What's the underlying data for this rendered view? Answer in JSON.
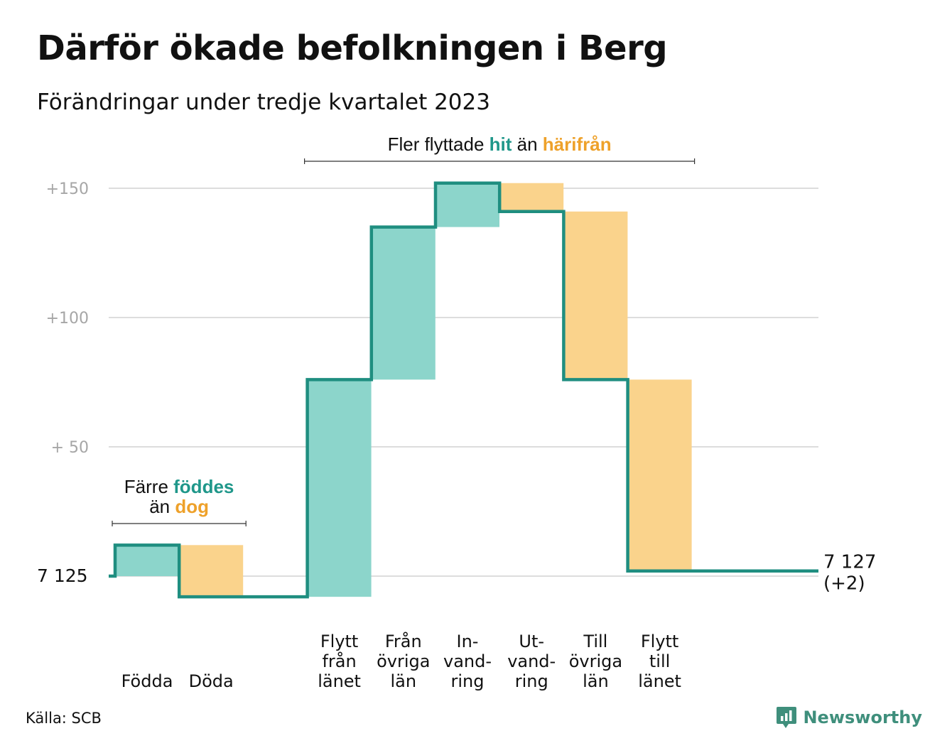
{
  "title": "Därför ökade befolkningen i Berg",
  "subtitle": "Förändringar under tredje kvartalet 2023",
  "source": "Källa: SCB",
  "brand": {
    "name": "Newsworthy",
    "icon": "newsworthy-logo-icon"
  },
  "colors": {
    "increase": "#8cd5cb",
    "decrease": "#fad38c",
    "line": "#1f8e80",
    "highlight_green": "#1f978a",
    "highlight_orange": "#eea12a",
    "grid": "#dddddd",
    "tick_text": "#a6a6a6"
  },
  "chart_data": {
    "type": "bar",
    "subtype": "waterfall",
    "title": "Därför ökade befolkningen i Berg",
    "subtitle": "Förändringar under tredje kvartalet 2023",
    "start_value": 7125,
    "start_label": "7  125",
    "end_value": 7127,
    "end_label": "7 127",
    "end_change_label": "(+2)",
    "y_ticks": [
      {
        "value": 150,
        "label": "+150"
      },
      {
        "value": 100,
        "label": "+100"
      },
      {
        "value": 50,
        "label": "+  50"
      }
    ],
    "ylim": [
      -15,
      160
    ],
    "grid": true,
    "categories": [
      {
        "label": [
          "Födda"
        ],
        "change": 12
      },
      {
        "label": [
          "Döda"
        ],
        "change": -20
      },
      {
        "label": [],
        "change": 0
      },
      {
        "label": [
          "Flytt",
          "från",
          "länet"
        ],
        "change": 84
      },
      {
        "label": [
          "Från",
          "övriga",
          "län"
        ],
        "change": 59
      },
      {
        "label": [
          "In-",
          "vand-",
          "ring"
        ],
        "change": 17
      },
      {
        "label": [
          "Ut-",
          "vand-",
          "ring"
        ],
        "change": -11
      },
      {
        "label": [
          "Till",
          "övriga",
          "län"
        ],
        "change": -65
      },
      {
        "label": [
          "Flytt",
          "till",
          "länet"
        ],
        "change": -74
      },
      {
        "label": [],
        "change": 0
      }
    ],
    "annotations": [
      {
        "lines": [
          [
            {
              "text": "Färre ",
              "style": "plain"
            },
            {
              "text": "föddes",
              "style": "green"
            }
          ],
          [
            {
              "text": "än ",
              "style": "plain"
            },
            {
              "text": "dog",
              "style": "orange"
            }
          ]
        ],
        "span": [
          0,
          1
        ]
      },
      {
        "lines": [
          [
            {
              "text": "Fler flyttade ",
              "style": "plain"
            },
            {
              "text": "hit",
              "style": "green"
            },
            {
              "text": " än ",
              "style": "plain"
            },
            {
              "text": "härifrån",
              "style": "orange"
            }
          ]
        ],
        "span": [
          3,
          8
        ]
      }
    ]
  }
}
